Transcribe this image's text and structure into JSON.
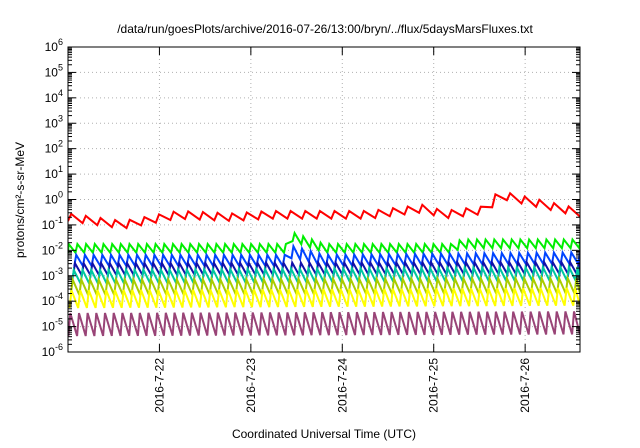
{
  "chart_data": {
    "type": "line",
    "title": "/data/run/goesPlots/archive/2016-07-26/13:00/bryn/../flux/5daysMarsFluxes.txt",
    "xlabel": "Coordinated Universal Time (UTC)",
    "ylabel": "protons/cm²-s-sr-MeV",
    "yscale": "log",
    "ylim": [
      1e-06,
      1000000.0
    ],
    "xlim": [
      21.0,
      26.6
    ],
    "grid": true,
    "y_ticks": [
      {
        "exp": "-6"
      },
      {
        "exp": "-5"
      },
      {
        "exp": "-4"
      },
      {
        "exp": "-3"
      },
      {
        "exp": "-2"
      },
      {
        "exp": "-1"
      },
      {
        "exp": "0"
      },
      {
        "exp": "1"
      },
      {
        "exp": "2"
      },
      {
        "exp": "3"
      },
      {
        "exp": "4"
      },
      {
        "exp": "5"
      },
      {
        "exp": "6"
      }
    ],
    "y_tick_base": "10",
    "x_ticks": [
      {
        "value": 22,
        "label": "2016-7-22"
      },
      {
        "value": 23,
        "label": "2016-7-23"
      },
      {
        "value": 24,
        "label": "2016-7-24"
      },
      {
        "value": 25,
        "label": "2016-7-25"
      },
      {
        "value": 26,
        "label": "2016-7-26"
      }
    ],
    "series": [
      {
        "color": "#ff0000",
        "base": 0.18,
        "amp": 2.0,
        "period": 0.16,
        "trend": [
          [
            21.0,
            0.2
          ],
          [
            21.6,
            0.1
          ],
          [
            22.2,
            0.25
          ],
          [
            22.8,
            0.2
          ],
          [
            23.2,
            0.25
          ],
          [
            24.3,
            0.25
          ],
          [
            24.9,
            0.45
          ],
          [
            25.1,
            0.25
          ],
          [
            25.6,
            0.4
          ],
          [
            25.7,
            1.6
          ],
          [
            26.6,
            0.3
          ]
        ]
      },
      {
        "color": "#00ee00",
        "base": 0.012,
        "amp": 2.2,
        "period": 0.095,
        "trend": [
          [
            21.0,
            0.012
          ],
          [
            23.4,
            0.012
          ],
          [
            23.45,
            0.035
          ],
          [
            23.8,
            0.012
          ],
          [
            25.2,
            0.012
          ],
          [
            25.3,
            0.018
          ],
          [
            26.6,
            0.018
          ]
        ]
      },
      {
        "color": "#0044ff",
        "base": 0.004,
        "amp": 2.8,
        "period": 0.095,
        "trend": [
          [
            21.0,
            0.004
          ],
          [
            23.4,
            0.004
          ],
          [
            23.45,
            0.009
          ],
          [
            23.8,
            0.004
          ],
          [
            26.6,
            0.005
          ]
        ]
      },
      {
        "color": "#1111aa",
        "base": 0.0018,
        "amp": 3.0,
        "period": 0.095,
        "trend": [
          [
            21.0,
            0.0018
          ],
          [
            26.6,
            0.002
          ]
        ]
      },
      {
        "color": "#00c8a0",
        "base": 0.0009,
        "amp": 3.5,
        "period": 0.095,
        "trend": [
          [
            21.0,
            0.0009
          ],
          [
            26.6,
            0.0012
          ]
        ]
      },
      {
        "color": "#aacc00",
        "base": 0.00035,
        "amp": 4.0,
        "period": 0.095,
        "trend": [
          [
            21.0,
            0.00035
          ],
          [
            26.6,
            0.0004
          ]
        ]
      },
      {
        "color": "#ffff00",
        "base": 0.00012,
        "amp": 5.0,
        "period": 0.095,
        "trend": [
          [
            21.0,
            0.00012
          ],
          [
            26.6,
            0.00015
          ]
        ]
      },
      {
        "color": "#994477",
        "base": 1.2e-05,
        "amp": 8.0,
        "period": 0.095,
        "trend": [
          [
            21.0,
            1.2e-05
          ],
          [
            26.6,
            1.4e-05
          ]
        ]
      }
    ]
  }
}
